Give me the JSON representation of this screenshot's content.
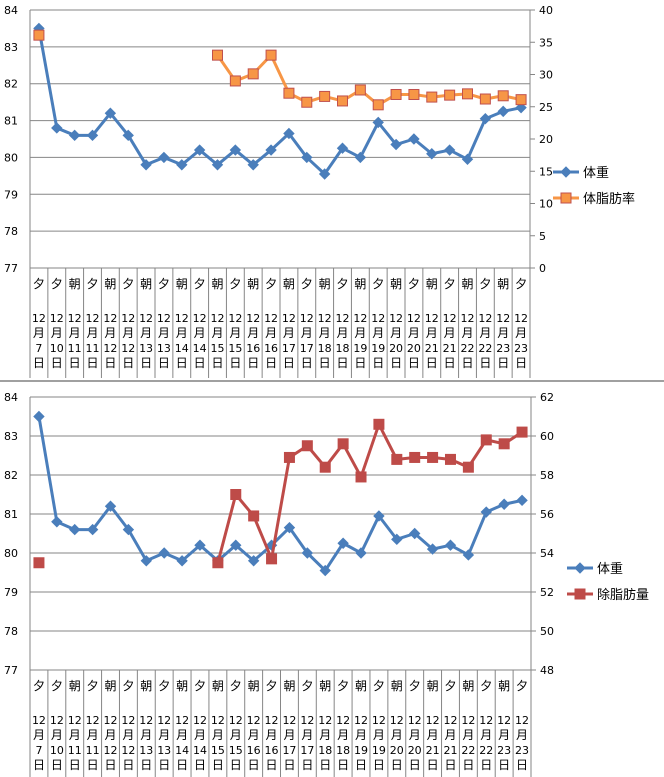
{
  "categories": {
    "period": [
      "夕",
      "夕",
      "朝",
      "夕",
      "朝",
      "夕",
      "朝",
      "夕",
      "朝",
      "夕",
      "朝",
      "夕",
      "朝",
      "夕",
      "朝",
      "夕",
      "朝",
      "夕",
      "朝",
      "夕",
      "朝",
      "夕",
      "朝",
      "夕",
      "朝",
      "夕",
      "朝",
      "夕"
    ],
    "month": "12",
    "month_unit": "月",
    "day_unit": "日",
    "days": [
      "7",
      "10",
      "11",
      "11",
      "12",
      "12",
      "13",
      "13",
      "14",
      "14",
      "15",
      "15",
      "16",
      "16",
      "17",
      "17",
      "18",
      "18",
      "19",
      "19",
      "20",
      "20",
      "21",
      "21",
      "22",
      "22",
      "23",
      "23"
    ]
  },
  "chart_data": [
    {
      "type": "line",
      "title": "",
      "left_axis": {
        "ylim": [
          77,
          84
        ],
        "ticks": [
          "77",
          "78",
          "79",
          "80",
          "81",
          "82",
          "83",
          "84"
        ]
      },
      "right_axis": {
        "ylim": [
          0,
          40
        ],
        "ticks": [
          "0",
          "5",
          "10",
          "15",
          "20",
          "25",
          "30",
          "35",
          "40"
        ]
      },
      "grid": true,
      "legend": "right",
      "series": [
        {
          "name": "体重",
          "axis": "left",
          "color": "#4a7ebb",
          "marker": "diamond",
          "values": [
            83.5,
            80.8,
            80.6,
            80.6,
            81.2,
            80.6,
            79.8,
            80.0,
            79.8,
            80.2,
            79.8,
            80.2,
            79.8,
            80.2,
            80.65,
            80.0,
            79.55,
            80.25,
            80.0,
            80.95,
            80.35,
            80.5,
            80.1,
            80.2,
            79.95,
            81.05,
            81.25,
            81.35
          ]
        },
        {
          "name": "体脂肪率",
          "axis": "right",
          "color": "#f79646",
          "marker": "square",
          "values": [
            36.1,
            null,
            null,
            null,
            null,
            null,
            null,
            null,
            null,
            null,
            33.0,
            29.0,
            30.1,
            33.0,
            27.1,
            25.7,
            26.6,
            25.9,
            27.6,
            25.3,
            26.9,
            26.9,
            26.5,
            26.8,
            27.0,
            26.2,
            26.7,
            26.1
          ]
        }
      ]
    },
    {
      "type": "line",
      "title": "",
      "left_axis": {
        "ylim": [
          77,
          84
        ],
        "ticks": [
          "77",
          "78",
          "79",
          "80",
          "81",
          "82",
          "83",
          "84"
        ]
      },
      "right_axis": {
        "ylim": [
          48,
          62
        ],
        "ticks": [
          "48",
          "50",
          "52",
          "54",
          "56",
          "58",
          "60",
          "62"
        ]
      },
      "grid": true,
      "legend": "right",
      "series": [
        {
          "name": "体重",
          "axis": "left",
          "color": "#4a7ebb",
          "marker": "diamond",
          "values": [
            83.5,
            80.8,
            80.6,
            80.6,
            81.2,
            80.6,
            79.8,
            80.0,
            79.8,
            80.2,
            79.8,
            80.2,
            79.8,
            80.2,
            80.65,
            80.0,
            79.55,
            80.25,
            80.0,
            80.95,
            80.35,
            80.5,
            80.1,
            80.2,
            79.95,
            81.05,
            81.25,
            81.35
          ]
        },
        {
          "name": "除脂肪量",
          "axis": "right",
          "color": "#be4b48",
          "marker": "square",
          "values": [
            53.5,
            null,
            null,
            null,
            null,
            null,
            null,
            null,
            null,
            null,
            53.5,
            57.0,
            55.9,
            53.7,
            58.9,
            59.5,
            58.4,
            59.6,
            57.9,
            60.6,
            58.8,
            58.9,
            58.9,
            58.8,
            58.4,
            59.8,
            59.6,
            60.2
          ]
        }
      ]
    }
  ]
}
